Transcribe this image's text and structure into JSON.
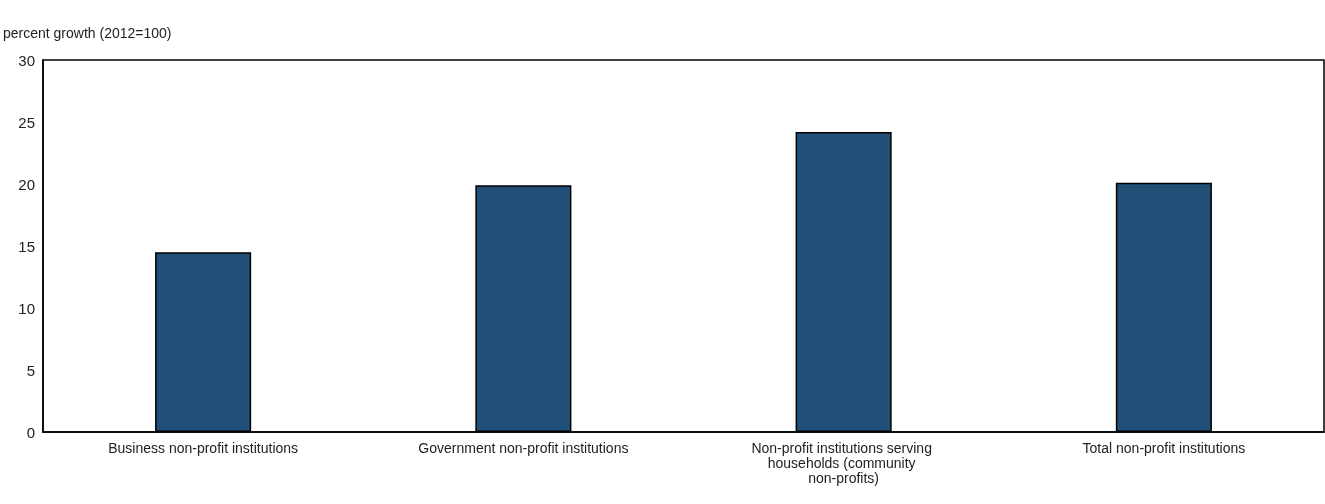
{
  "chart_data": {
    "type": "bar",
    "ylabel": "percent growth (2012=100)",
    "categories": [
      "Business non-profit institutions",
      "Government non-profit institutions",
      "Non-profit institutions serving households (community non-profits)",
      "Total non-profit institutions"
    ],
    "values": [
      14.5,
      19.9,
      24.2,
      20.1
    ],
    "color": "#214f78",
    "ylim": [
      0,
      30
    ],
    "yticks": [
      0,
      5,
      10,
      15,
      20,
      25,
      30
    ],
    "grid": false
  }
}
